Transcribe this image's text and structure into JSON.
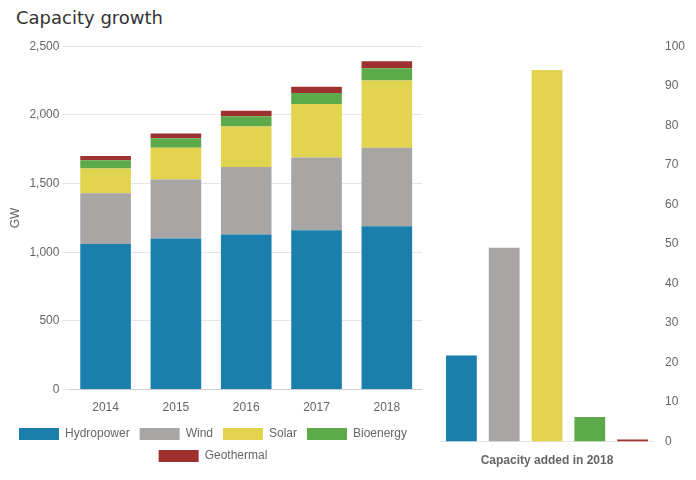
{
  "chart_data": [
    {
      "type": "bar",
      "title": "Capacity growth",
      "ylabel": "GW",
      "stacked": true,
      "grid": true,
      "legend": "bottom",
      "categories": [
        "2014",
        "2015",
        "2016",
        "2017",
        "2018"
      ],
      "series": [
        {
          "name": "Hydropower",
          "color": "#1a7fac",
          "values": [
            1060,
            1100,
            1130,
            1160,
            1190
          ]
        },
        {
          "name": "Wind",
          "color": "#a8a5a5",
          "values": [
            370,
            430,
            490,
            530,
            570
          ]
        },
        {
          "name": "Solar",
          "color": "#e2d44e",
          "values": [
            180,
            230,
            295,
            390,
            490
          ]
        },
        {
          "name": "Bioenergy",
          "color": "#5daa4a",
          "values": [
            60,
            70,
            75,
            80,
            90
          ]
        },
        {
          "name": "Geothermal",
          "color": "#9e3030",
          "values": [
            30,
            35,
            40,
            45,
            50
          ]
        }
      ],
      "ylim": [
        0,
        2500
      ],
      "yticks": [
        0,
        500,
        {
          "value": 1000,
          "label": "1,000"
        },
        {
          "value": 1500,
          "label": "1,500"
        },
        {
          "value": 2000,
          "label": "2,000"
        },
        {
          "value": 2500,
          "label": "2,500"
        }
      ]
    },
    {
      "type": "bar",
      "xlabel": "Capacity added in 2018",
      "grid": false,
      "tick_labels": "y",
      "categories": [
        null,
        null,
        null,
        null,
        null
      ],
      "values": [
        21.8,
        49.0,
        94.0,
        6.2,
        0.5
      ],
      "colors": [
        "#1a7fac",
        "#a8a5a5",
        "#e2d44e",
        "#5daa4a",
        "#9e3030"
      ],
      "ylim": [
        0,
        100
      ],
      "yticks": [
        0,
        10,
        20,
        30,
        40,
        50,
        60,
        70,
        80,
        90,
        100
      ]
    }
  ]
}
